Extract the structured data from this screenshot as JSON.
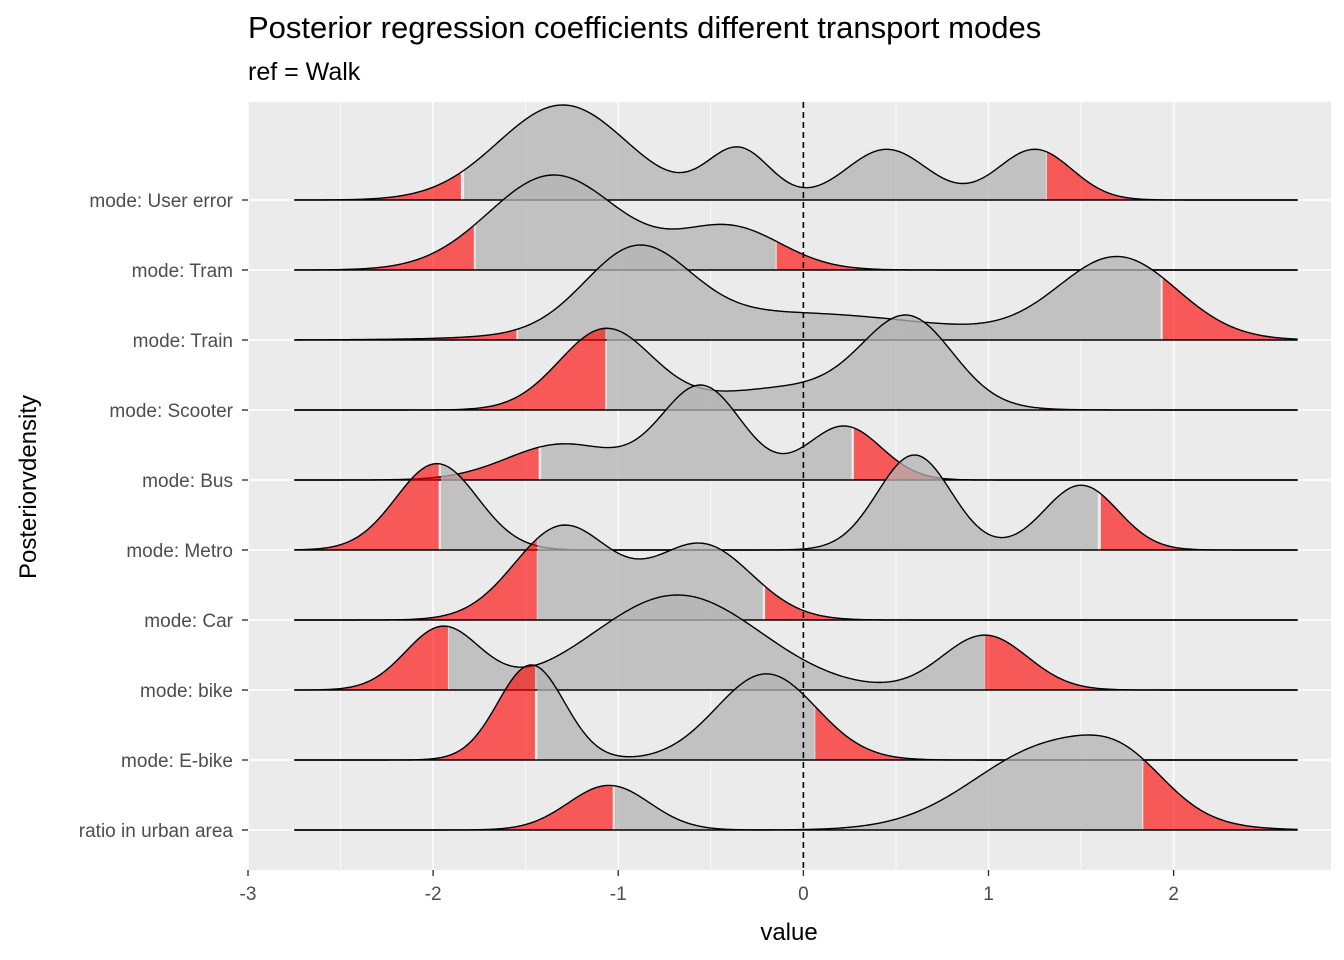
{
  "chart_data": {
    "type": "ridgeline-density",
    "title": "Posterior regression coefficients different transport modes",
    "subtitle": "ref = Walk",
    "xlabel": "value",
    "ylabel": "Posteriorvdensity",
    "xlim": [
      -3,
      2.85
    ],
    "x_ticks": [
      -3,
      -2,
      -1,
      0,
      1,
      2
    ],
    "x_tick_labels": [
      "-3",
      "-2",
      "-1",
      "0",
      "1",
      "2"
    ],
    "reference_line": {
      "x": 0,
      "style": "dashed"
    },
    "grid": true,
    "colors": {
      "panel_background": "#ebebeb",
      "grid": "#ffffff",
      "density_fill": "#b3b3b3",
      "tail_fill": "#ff0000",
      "outline": "#000000"
    },
    "series": [
      {
        "name": "ratio in urban area",
        "lower": -1.03,
        "upper": 1.83,
        "components": [
          {
            "mu": -1.05,
            "sd": 0.22,
            "w": 0.9
          },
          {
            "mu": 1.35,
            "sd": 0.42,
            "w": 1.7
          },
          {
            "mu": 1.75,
            "sd": 0.22,
            "w": 0.6
          }
        ]
      },
      {
        "name": "mode: E-bike",
        "lower": -1.45,
        "upper": 0.06,
        "components": [
          {
            "mu": -1.47,
            "sd": 0.18,
            "w": 1.6
          },
          {
            "mu": -0.2,
            "sd": 0.27,
            "w": 1.45
          }
        ]
      },
      {
        "name": "mode: bike",
        "lower": -1.92,
        "upper": 0.98,
        "components": [
          {
            "mu": -1.95,
            "sd": 0.2,
            "w": 0.85
          },
          {
            "mu": -0.68,
            "sd": 0.45,
            "w": 1.3
          },
          {
            "mu": 0.98,
            "sd": 0.23,
            "w": 0.75
          }
        ]
      },
      {
        "name": "mode: Car",
        "lower": -1.44,
        "upper": -0.22,
        "components": [
          {
            "mu": -1.3,
            "sd": 0.26,
            "w": 1.3
          },
          {
            "mu": -0.55,
            "sd": 0.27,
            "w": 1.05
          }
        ]
      },
      {
        "name": "mode: Metro",
        "lower": -1.97,
        "upper": 1.59,
        "components": [
          {
            "mu": -1.98,
            "sd": 0.22,
            "w": 1.0
          },
          {
            "mu": 0.6,
            "sd": 0.2,
            "w": 1.1
          },
          {
            "mu": 1.5,
            "sd": 0.2,
            "w": 0.75
          }
        ]
      },
      {
        "name": "mode: Bus",
        "lower": -1.43,
        "upper": 0.26,
        "components": [
          {
            "mu": -0.55,
            "sd": 0.22,
            "w": 1.3
          },
          {
            "mu": 0.22,
            "sd": 0.2,
            "w": 0.75
          },
          {
            "mu": -1.3,
            "sd": 0.3,
            "w": 0.5
          }
        ]
      },
      {
        "name": "mode: Scooter",
        "lower": -1.07,
        "upper": 1.26,
        "components": [
          {
            "mu": -1.07,
            "sd": 0.25,
            "w": 1.2
          },
          {
            "mu": 0.57,
            "sd": 0.24,
            "w": 1.25
          },
          {
            "mu": 0.0,
            "sd": 0.5,
            "w": 0.35
          }
        ]
      },
      {
        "name": "mode: Train",
        "lower": -1.55,
        "upper": 1.93,
        "components": [
          {
            "mu": -0.9,
            "sd": 0.28,
            "w": 1.3
          },
          {
            "mu": 1.7,
            "sd": 0.32,
            "w": 1.35
          },
          {
            "mu": -0.1,
            "sd": 0.8,
            "w": 0.45
          }
        ]
      },
      {
        "name": "mode: Tram",
        "lower": -1.78,
        "upper": -0.15,
        "components": [
          {
            "mu": -1.35,
            "sd": 0.35,
            "w": 1.55
          },
          {
            "mu": -0.4,
            "sd": 0.28,
            "w": 0.7
          }
        ]
      },
      {
        "name": "mode: User error",
        "lower": -1.85,
        "upper": 1.31,
        "components": [
          {
            "mu": -1.3,
            "sd": 0.35,
            "w": 1.5
          },
          {
            "mu": -0.35,
            "sd": 0.17,
            "w": 0.8
          },
          {
            "mu": 0.45,
            "sd": 0.22,
            "w": 0.8
          },
          {
            "mu": 1.25,
            "sd": 0.2,
            "w": 0.8
          }
        ]
      }
    ]
  }
}
